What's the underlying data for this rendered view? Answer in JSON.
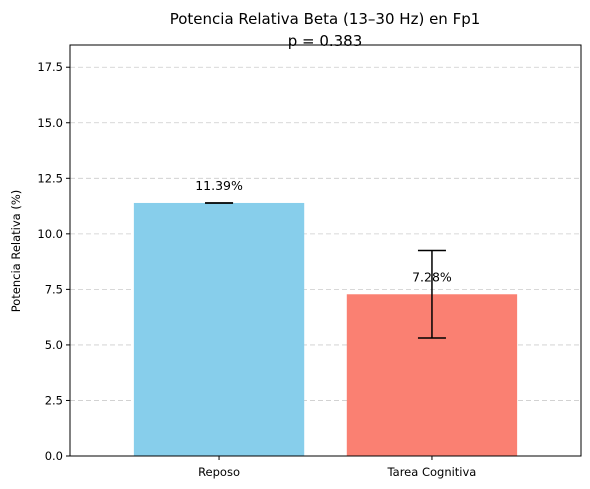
{
  "chart_data": {
    "type": "bar",
    "title": "Potencia Relativa Beta (13–30 Hz) en Fp1",
    "subtitle": "p = 0.383",
    "xlabel": "",
    "ylabel": "Potencia Relativa (%)",
    "categories": [
      "Reposo",
      "Tarea Cognitiva"
    ],
    "values": [
      11.39,
      7.28
    ],
    "errors": [
      0.0,
      1.97
    ],
    "data_labels": [
      "11.39%",
      "7.28%"
    ],
    "colors": [
      "#87ceeb",
      "#fa8072"
    ],
    "ylim": [
      0,
      18.5
    ],
    "yticks": [
      0.0,
      2.5,
      5.0,
      7.5,
      10.0,
      12.5,
      15.0,
      17.5
    ],
    "ytick_labels": [
      "0.0",
      "2.5",
      "5.0",
      "7.5",
      "10.0",
      "12.5",
      "15.0",
      "17.5"
    ],
    "grid": "y-dashed",
    "legend": "none"
  }
}
